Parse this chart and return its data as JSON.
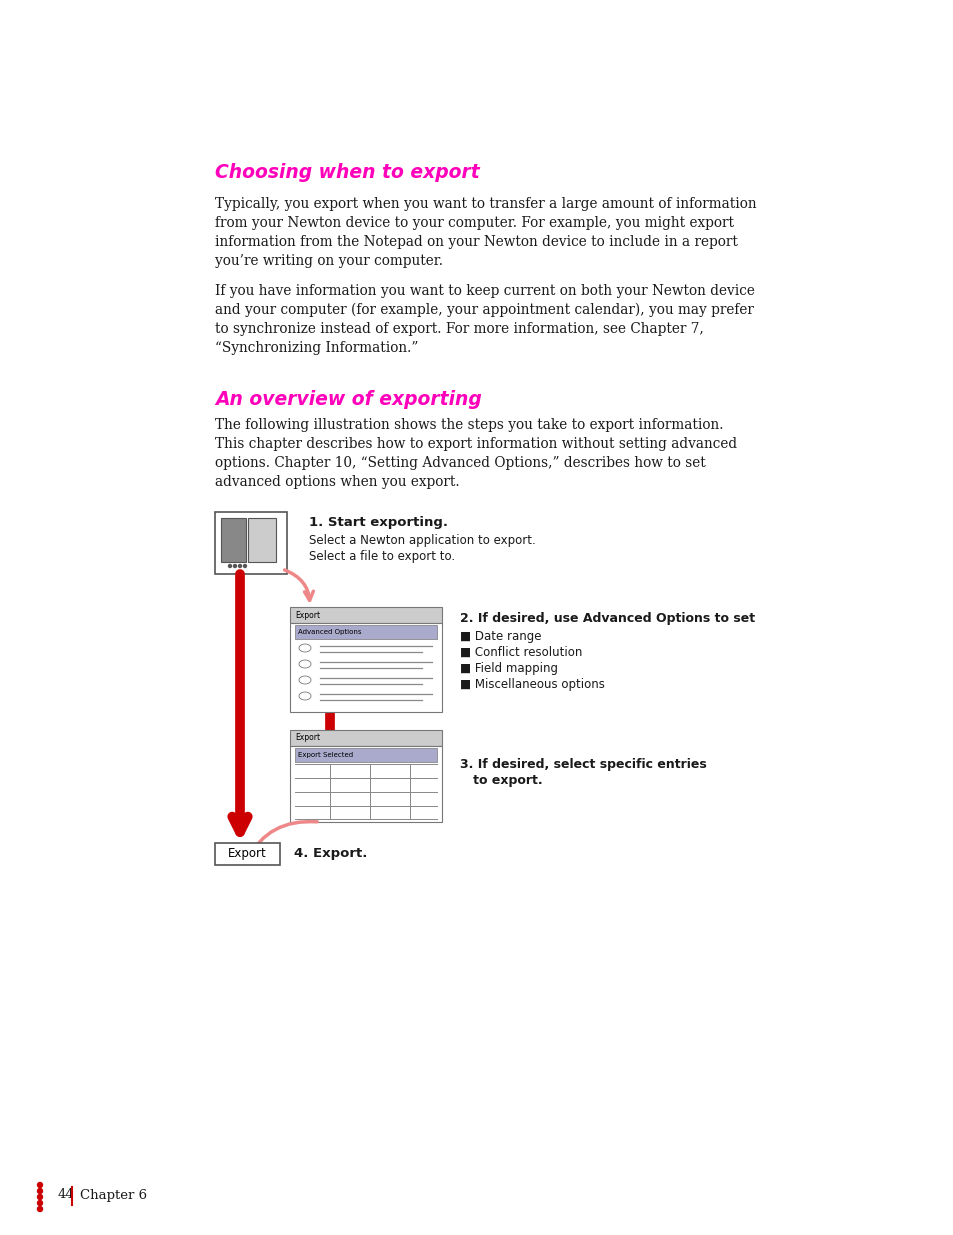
{
  "bg_color": "#ffffff",
  "heading1": "Choosing when to export",
  "heading1_color": "#ff00bb",
  "para1_lines": [
    "Typically, you export when you want to transfer a large amount of information",
    "from your Newton device to your computer. For example, you might export",
    "information from the Notepad on your Newton device to include in a report",
    "you’re writing on your computer."
  ],
  "para2_lines": [
    "If you have information you want to keep current on both your Newton device",
    "and your computer (for example, your appointment calendar), you may prefer",
    "to synchronize instead of export. For more information, see Chapter 7,",
    "“Synchronizing Information.”"
  ],
  "heading2": "An overview of exporting",
  "heading2_color": "#ff00bb",
  "para3_lines": [
    "The following illustration shows the steps you take to export information.",
    "This chapter describes how to export information without setting advanced",
    "options. Chapter 10, “Setting Advanced Options,” describes how to set",
    "advanced options when you export."
  ],
  "step1_bold": "1. Start exporting.",
  "step1_line1": "Select a Newton application to export.",
  "step1_line2": "Select a file to export to.",
  "step2_bold": "2. If desired, use Advanced Options to set",
  "step2_bullets": [
    "■ Date range",
    "■ Conflict resolution",
    "■ Field mapping",
    "■ Miscellaneous options"
  ],
  "step3_line1": "3. If desired, select specific entries",
  "step3_line2": "   to export.",
  "step4_bold": "4. Export.",
  "footer_page": "44",
  "footer_chapter": "Chapter 6",
  "arrow_red": "#cc0000",
  "arrow_pink": "#ee8888",
  "text_color": "#1a1a1a",
  "gray_title": "#bbbbbb",
  "gray_adv": "#9999bb",
  "border_color": "#888888"
}
